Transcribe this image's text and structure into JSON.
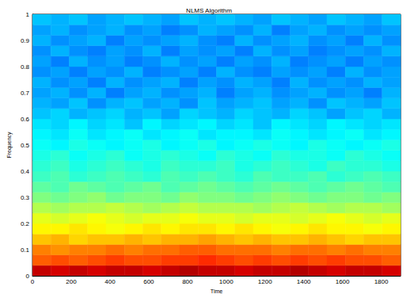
{
  "chart_data": {
    "type": "heatmap",
    "title": "NLMS Algorithm",
    "x_label": "Time",
    "y_label": "Frequency",
    "xlim": [
      0,
      1900
    ],
    "ylim": [
      0,
      1
    ],
    "xticks": [
      0,
      200,
      400,
      600,
      800,
      1000,
      1200,
      1400,
      1600,
      1800
    ],
    "yticks": [
      0,
      0.1,
      0.2,
      0.3,
      0.4,
      0.5,
      0.6,
      0.7,
      0.8,
      0.9,
      1
    ],
    "zlim": [
      -60,
      0
    ],
    "time_bins": [
      0,
      95,
      190,
      285,
      380,
      475,
      570,
      665,
      760,
      855,
      950,
      1045,
      1140,
      1235,
      1330,
      1425,
      1520,
      1615,
      1710,
      1805,
      1900
    ],
    "frequency_bins": [
      0,
      0.04,
      0.08,
      0.12,
      0.16,
      0.2,
      0.24,
      0.28,
      0.32,
      0.36,
      0.4,
      0.44,
      0.48,
      0.52,
      0.56,
      0.6,
      0.64,
      0.68,
      0.72,
      0.76,
      0.8,
      0.84,
      0.88,
      0.92,
      0.96,
      1
    ],
    "cells": [
      [
        -4,
        -5,
        -4,
        -5,
        -4,
        -4,
        -5,
        -4,
        -3,
        -4,
        -4,
        -5,
        -4,
        -4,
        -3,
        -4,
        -5,
        -4,
        -4,
        -5
      ],
      [
        -13,
        -12,
        -13,
        -12,
        -11,
        -12,
        -12,
        -11,
        -11,
        -10,
        -11,
        -12,
        -11,
        -12,
        -11,
        -12,
        -11,
        -12,
        -12,
        -13
      ],
      [
        -15,
        -16,
        -15,
        -15,
        -14,
        -15,
        -14,
        -14,
        -13,
        -13,
        -14,
        -14,
        -14,
        -15,
        -14,
        -14,
        -15,
        -14,
        -15,
        -15
      ],
      [
        -19,
        -18,
        -20,
        -19,
        -19,
        -18,
        -19,
        -18,
        -18,
        -17,
        -18,
        -19,
        -18,
        -19,
        -19,
        -18,
        -19,
        -20,
        -19,
        -19
      ],
      [
        -22,
        -22,
        -21,
        -22,
        -23,
        -22,
        -21,
        -22,
        -21,
        -21,
        -22,
        -21,
        -22,
        -23,
        -22,
        -21,
        -22,
        -22,
        -23,
        -22
      ],
      [
        -24,
        -25,
        -24,
        -23,
        -24,
        -25,
        -24,
        -24,
        -23,
        -24,
        -24,
        -25,
        -24,
        -24,
        -25,
        -24,
        -23,
        -24,
        -25,
        -24
      ],
      [
        -27,
        -28,
        -27,
        -27,
        -26,
        -27,
        -28,
        -27,
        -26,
        -27,
        -27,
        -27,
        -28,
        -27,
        -26,
        -27,
        -28,
        -27,
        -27,
        -28
      ],
      [
        -30,
        -31,
        -30,
        -29,
        -31,
        -30,
        -30,
        -31,
        -29,
        -30,
        -30,
        -31,
        -30,
        -29,
        -30,
        -31,
        -30,
        -30,
        -31,
        -30
      ],
      [
        -32,
        -33,
        -31,
        -32,
        -33,
        -32,
        -31,
        -33,
        -32,
        -31,
        -32,
        -33,
        -32,
        -31,
        -32,
        -33,
        -32,
        -31,
        -32,
        -33
      ],
      [
        -34,
        -33,
        -35,
        -34,
        -33,
        -34,
        -35,
        -33,
        -34,
        -33,
        -34,
        -35,
        -33,
        -34,
        -34,
        -33,
        -35,
        -34,
        -33,
        -34
      ],
      [
        -35,
        -34,
        -36,
        -35,
        -34,
        -35,
        -36,
        -34,
        -35,
        -35,
        -34,
        -36,
        -35,
        -34,
        -35,
        -36,
        -34,
        -35,
        -35,
        -36
      ],
      [
        -36,
        -35,
        -37,
        -36,
        -35,
        -37,
        -36,
        -35,
        -36,
        -37,
        -35,
        -36,
        -37,
        -35,
        -36,
        -36,
        -37,
        -35,
        -36,
        -37
      ],
      [
        -37,
        -38,
        -36,
        -37,
        -38,
        -37,
        -36,
        -38,
        -37,
        -36,
        -38,
        -37,
        -36,
        -37,
        -38,
        -36,
        -37,
        -38,
        -37,
        -36
      ],
      [
        -38,
        -39,
        -37,
        -39,
        -38,
        -37,
        -39,
        -38,
        -37,
        -39,
        -38,
        -38,
        -39,
        -37,
        -38,
        -39,
        -38,
        -37,
        -39,
        -38
      ],
      [
        -39,
        -40,
        -38,
        -40,
        -39,
        -41,
        -38,
        -40,
        -39,
        -38,
        -40,
        -39,
        -41,
        -38,
        -39,
        -40,
        -38,
        -39,
        -40,
        -39
      ],
      [
        -41,
        -40,
        -42,
        -41,
        -40,
        -42,
        -41,
        -43,
        -40,
        -41,
        -42,
        -40,
        -41,
        -42,
        -40,
        -41,
        -43,
        -41,
        -40,
        -42
      ],
      [
        -42,
        -43,
        -41,
        -44,
        -42,
        -41,
        -43,
        -42,
        -44,
        -41,
        -43,
        -42,
        -41,
        -43,
        -42,
        -44,
        -41,
        -42,
        -43,
        -41
      ],
      [
        -43,
        -42,
        -44,
        -42,
        -45,
        -43,
        -42,
        -44,
        -43,
        -42,
        -45,
        -43,
        -42,
        -44,
        -43,
        -42,
        -44,
        -43,
        -45,
        -42
      ],
      [
        -42,
        -44,
        -43,
        -45,
        -42,
        -44,
        -43,
        -42,
        -45,
        -43,
        -44,
        -42,
        -43,
        -45,
        -42,
        -44,
        -43,
        -44,
        -42,
        -43
      ],
      [
        -44,
        -43,
        -45,
        -43,
        -44,
        -42,
        -45,
        -44,
        -43,
        -45,
        -42,
        -44,
        -45,
        -43,
        -44,
        -43,
        -45,
        -42,
        -44,
        -43
      ],
      [
        -43,
        -45,
        -42,
        -44,
        -43,
        -45,
        -44,
        -42,
        -44,
        -43,
        -45,
        -43,
        -44,
        -42,
        -45,
        -44,
        -43,
        -45,
        -43,
        -44
      ],
      [
        -44,
        -42,
        -44,
        -45,
        -43,
        -44,
        -42,
        -45,
        -43,
        -44,
        -43,
        -45,
        -42,
        -44,
        -43,
        -45,
        -44,
        -43,
        -44,
        -42
      ],
      [
        -42,
        -44,
        -43,
        -42,
        -45,
        -43,
        -44,
        -43,
        -42,
        -44,
        -45,
        -42,
        -44,
        -43,
        -42,
        -44,
        -43,
        -45,
        -42,
        -44
      ],
      [
        -43,
        -42,
        -44,
        -43,
        -42,
        -44,
        -43,
        -45,
        -44,
        -42,
        -43,
        -44,
        -42,
        -45,
        -43,
        -42,
        -44,
        -43,
        -44,
        -43
      ],
      [
        -41,
        -42,
        -41,
        -43,
        -42,
        -41,
        -42,
        -43,
        -41,
        -42,
        -41,
        -42,
        -43,
        -41,
        -42,
        -43,
        -41,
        -42,
        -43,
        -41
      ]
    ]
  }
}
